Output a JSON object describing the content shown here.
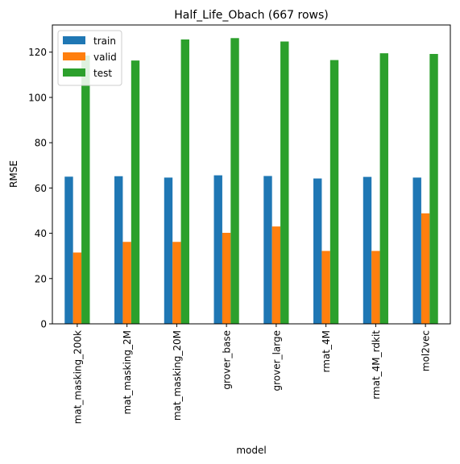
{
  "chart_data": {
    "type": "bar",
    "title": "Half_Life_Obach (667 rows)",
    "xlabel": "model",
    "ylabel": "RMSE",
    "ylim": [
      0,
      132
    ],
    "yticks": [
      0,
      20,
      40,
      60,
      80,
      100,
      120
    ],
    "categories": [
      "mat_masking_200k",
      "mat_masking_2M",
      "mat_masking_20M",
      "grover_base",
      "grover_large",
      "rmat_4M",
      "rmat_4M_rdkit",
      "mol2vec"
    ],
    "series": [
      {
        "name": "train",
        "color": "#1f77b4",
        "values": [
          65.0,
          65.2,
          64.6,
          65.6,
          65.3,
          64.2,
          64.9,
          64.6
        ]
      },
      {
        "name": "valid",
        "color": "#ff7f0e",
        "values": [
          31.5,
          36.2,
          36.2,
          40.2,
          43.0,
          32.2,
          32.2,
          48.8
        ]
      },
      {
        "name": "test",
        "color": "#2ca02c",
        "values": [
          118.5,
          116.3,
          125.6,
          126.2,
          124.7,
          116.5,
          119.5,
          119.2
        ]
      }
    ],
    "legend": "top-left",
    "grid": false
  }
}
